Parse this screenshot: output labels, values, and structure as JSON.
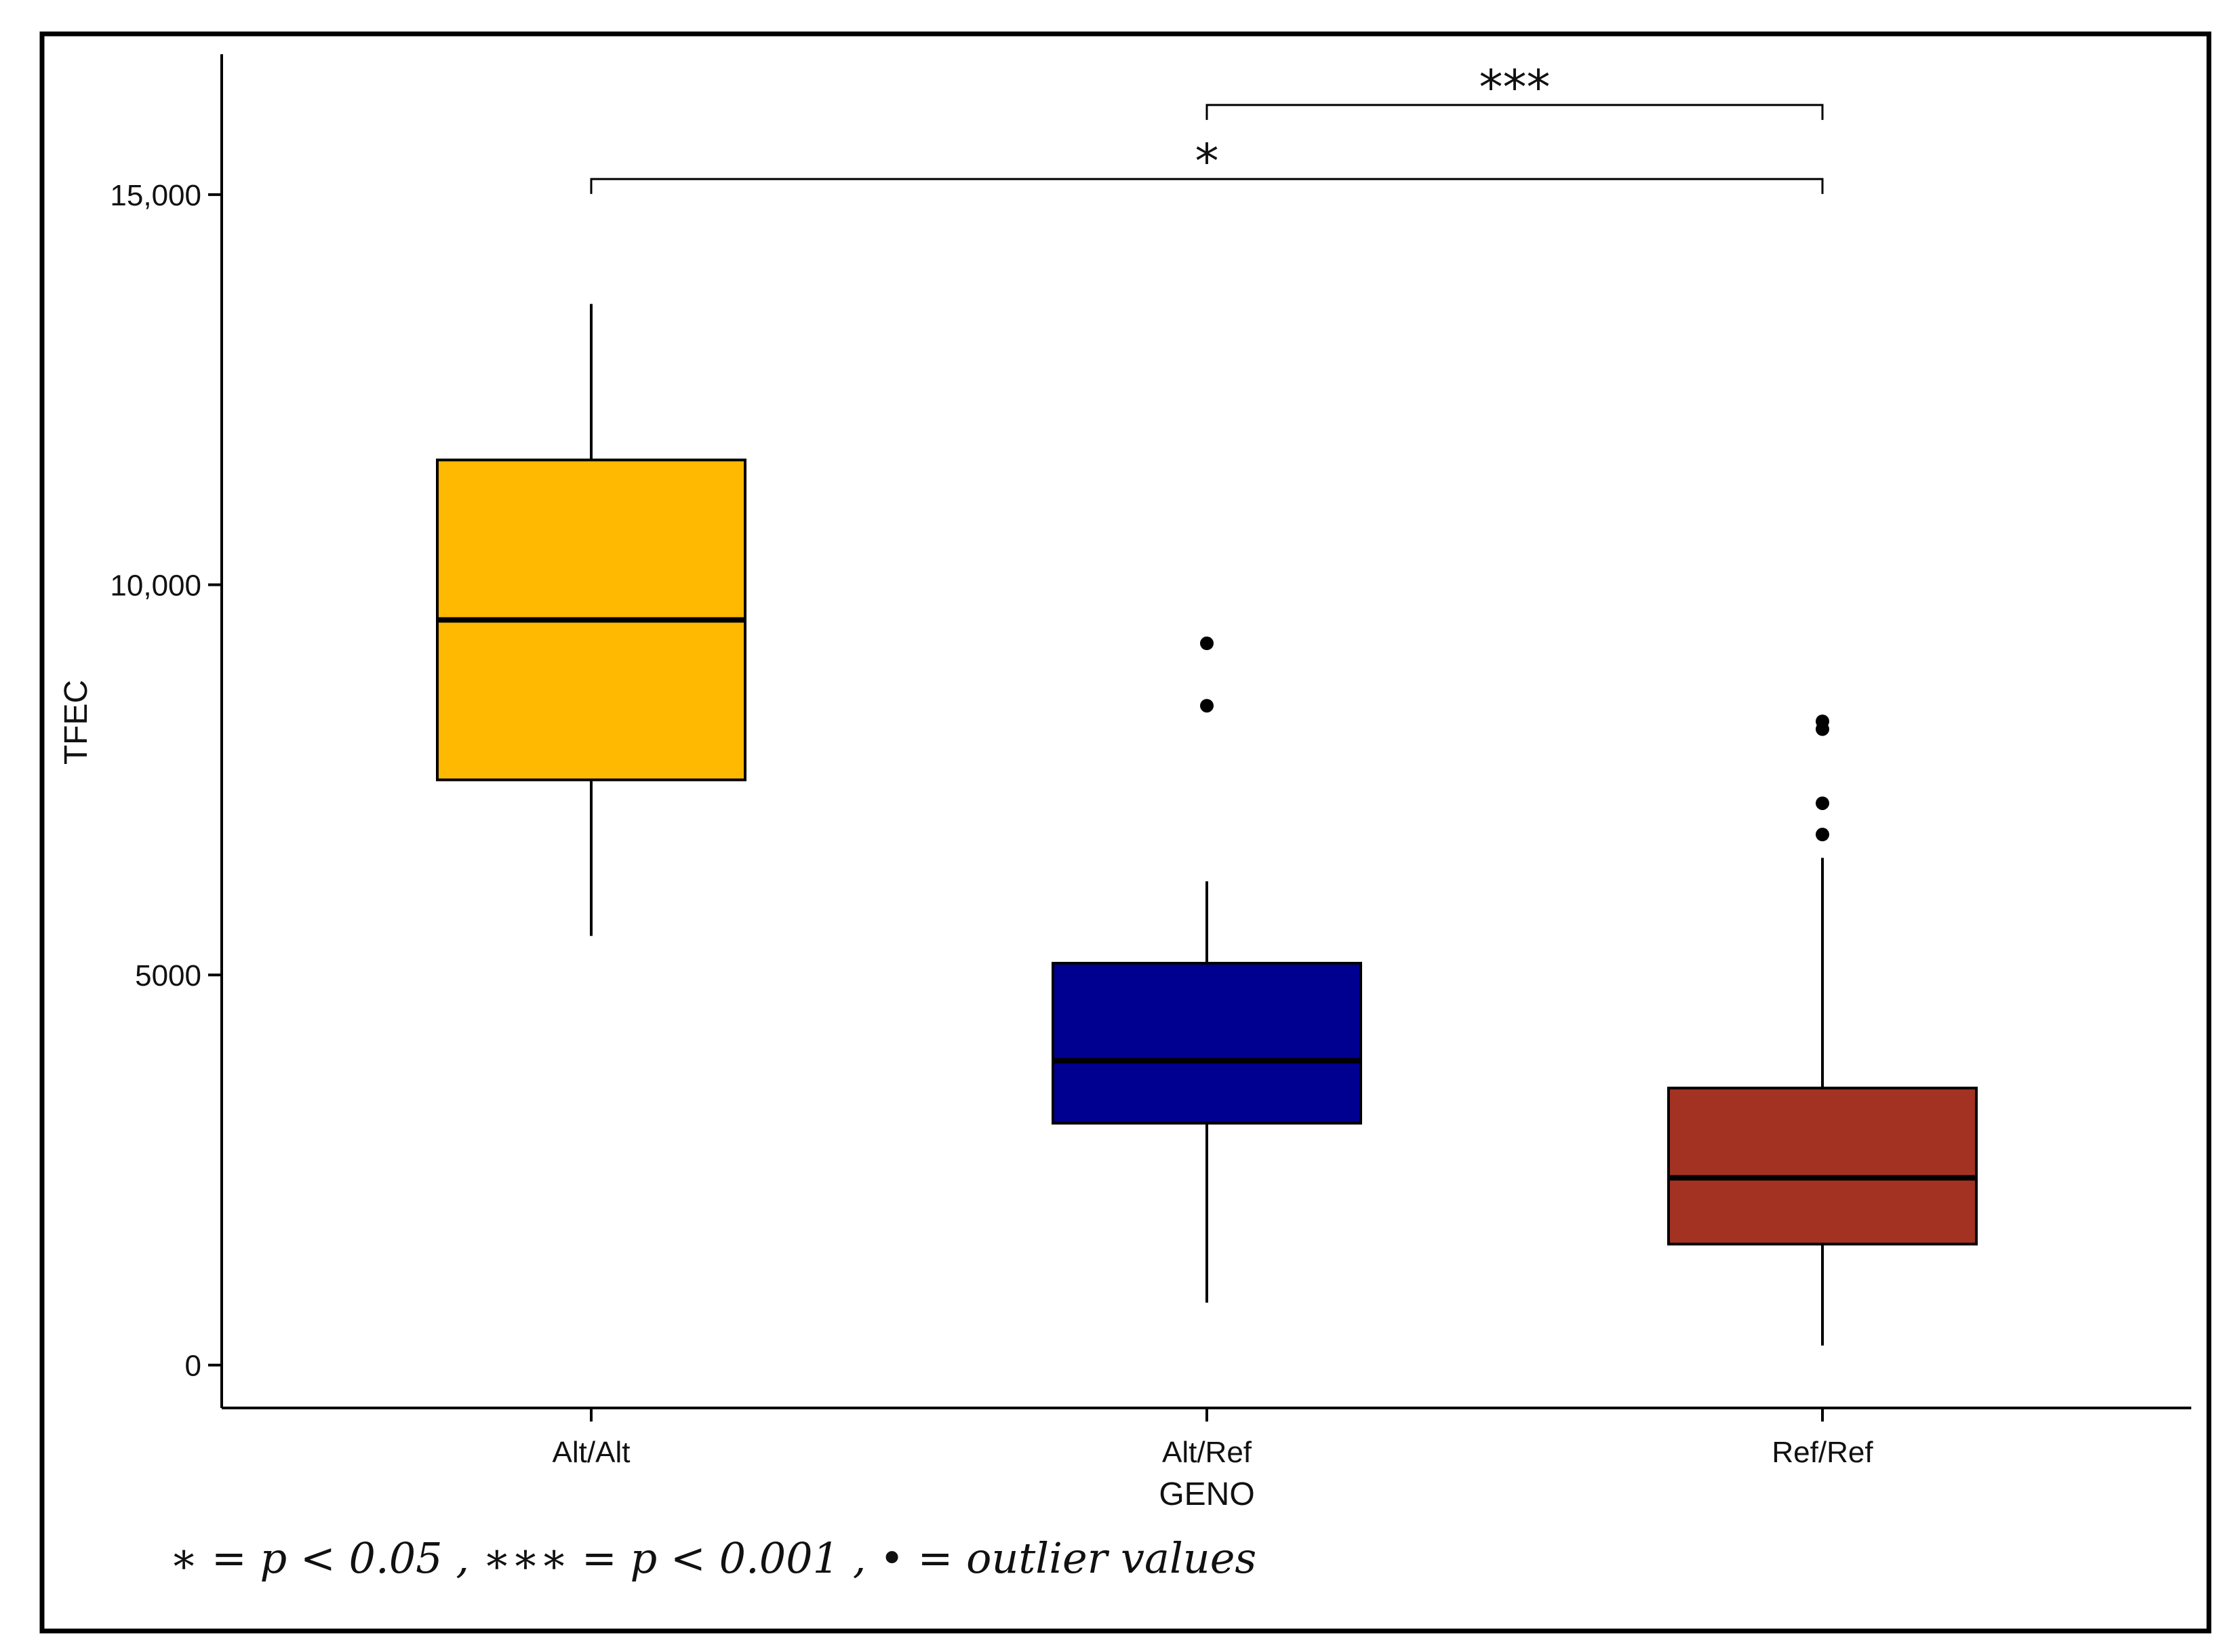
{
  "chart_data": {
    "type": "boxplot",
    "xlabel": "GENO",
    "ylabel": "TFEC",
    "ylim": [
      -550,
      16800
    ],
    "y_ticks": [
      {
        "value": 0,
        "label": "0"
      },
      {
        "value": 5000,
        "label": "5000"
      },
      {
        "value": 10000,
        "label": "10,000"
      },
      {
        "value": 15000,
        "label": "15,000"
      }
    ],
    "categories": [
      "Alt/Alt",
      "Alt/Ref",
      "Ref/Ref"
    ],
    "boxes": [
      {
        "category": "Alt/Alt",
        "whisker_low": 5500,
        "q1": 7500,
        "median": 9550,
        "q3": 11600,
        "whisker_high": 13600,
        "outliers": [],
        "color": "#FFB900"
      },
      {
        "category": "Alt/Ref",
        "whisker_low": 800,
        "q1": 3100,
        "median": 3900,
        "q3": 5150,
        "whisker_high": 6200,
        "outliers": [
          9250,
          8450
        ],
        "color": "#000090"
      },
      {
        "category": "Ref/Ref",
        "whisker_low": 250,
        "q1": 1550,
        "median": 2400,
        "q3": 3550,
        "whisker_high": 6500,
        "outliers": [
          8250,
          8150,
          7200,
          6800
        ],
        "color": "#A33222"
      }
    ],
    "significance": [
      {
        "from": "Alt/Ref",
        "to": "Ref/Ref",
        "value": 16150,
        "label": "***"
      },
      {
        "from": "Alt/Alt",
        "to": "Ref/Ref",
        "value": 15200,
        "label": "*"
      }
    ],
    "grid": false,
    "legend": "none"
  },
  "footnote": "∗ = p < 0.05 , ∗∗∗ = p < 0.001 , • = outlier values"
}
